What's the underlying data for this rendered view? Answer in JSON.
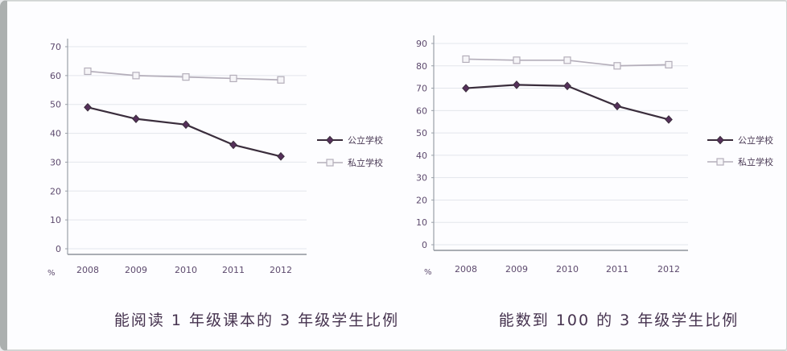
{
  "chart_data": [
    {
      "type": "line",
      "title": "能阅读 1 年级课本的 3 年级学生比例",
      "categories": [
        "2008",
        "2009",
        "2010",
        "2011",
        "2012"
      ],
      "series": [
        {
          "name": "公立学校",
          "values": [
            49,
            45,
            43,
            36,
            32
          ],
          "color": "#3a2d3c",
          "marker": "diamond"
        },
        {
          "name": "私立学校",
          "values": [
            61.5,
            60,
            59.5,
            59,
            58.5
          ],
          "color": "#b4aeba",
          "marker": "square"
        }
      ],
      "xlabel": "",
      "ylabel": "%",
      "ylim": [
        0,
        75
      ],
      "y_ticks": [
        0,
        10,
        20,
        30,
        40,
        50,
        60,
        70
      ],
      "grid": true,
      "legend_position": "right"
    },
    {
      "type": "line",
      "title": "能数到 100 的 3 年级学生比例",
      "categories": [
        "2008",
        "2009",
        "2010",
        "2011",
        "2012"
      ],
      "series": [
        {
          "name": "公立学校",
          "values": [
            70,
            71.5,
            71,
            62,
            56
          ],
          "color": "#3a2d3c",
          "marker": "diamond"
        },
        {
          "name": "私立学校",
          "values": [
            83,
            82.5,
            82.5,
            80,
            80.5
          ],
          "color": "#b4aeba",
          "marker": "square"
        }
      ],
      "xlabel": "",
      "ylabel": "%",
      "ylim": [
        0,
        95
      ],
      "y_ticks": [
        0,
        10,
        20,
        30,
        40,
        50,
        60,
        70,
        80,
        90
      ],
      "grid": true,
      "legend_position": "right"
    }
  ],
  "colors": {
    "axis": "#9aa0a8",
    "gridline": "#e3e6ec",
    "tick_label": "#5d4a6e",
    "caption": "#46334f",
    "public_marker_fill": "#55305a",
    "private_marker_fill": "#f6f5f8"
  }
}
